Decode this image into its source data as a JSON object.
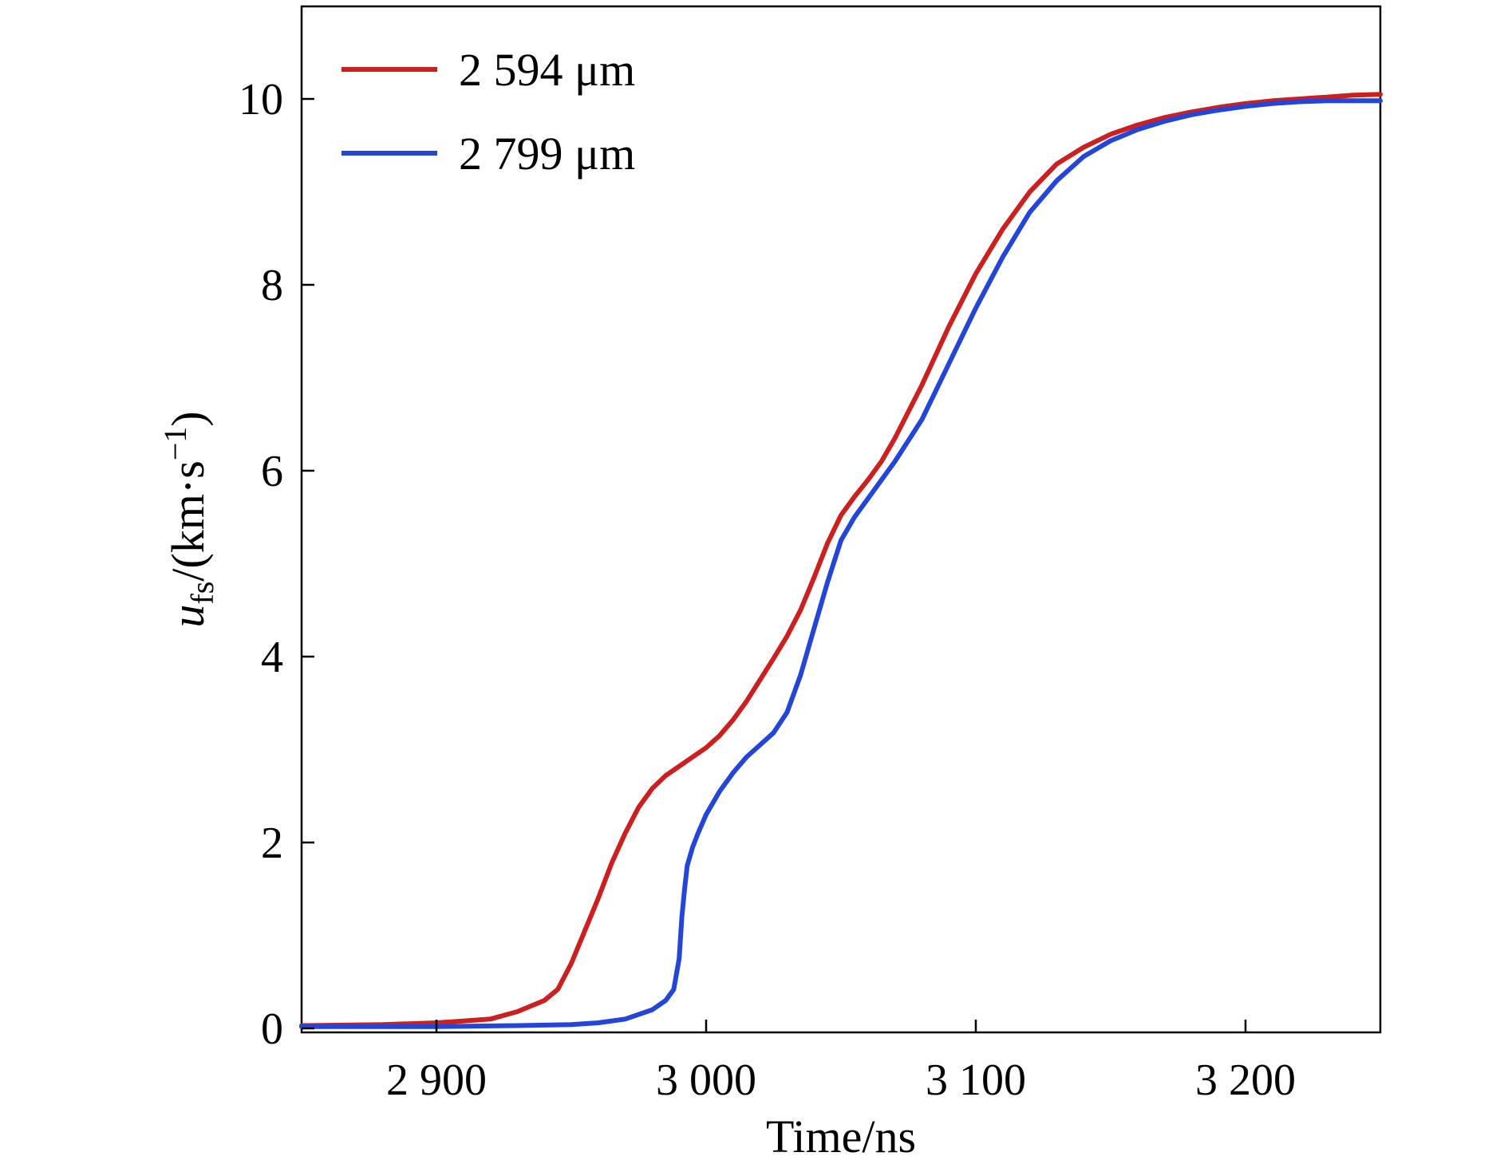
{
  "chart_data": {
    "type": "line",
    "xlabel": "Time/ns",
    "ylabel": {
      "symbol": "u",
      "subscript": "fs",
      "unit_prefix": "/(km·s",
      "superscript": "−1",
      "unit_suffix": ")"
    },
    "xlim": [
      2850,
      3250
    ],
    "ylim": [
      0,
      11
    ],
    "xticks": [
      {
        "value": 2900,
        "label": "2 900"
      },
      {
        "value": 3000,
        "label": "3 000"
      },
      {
        "value": 3100,
        "label": "3 100"
      },
      {
        "value": 3200,
        "label": "3 200"
      }
    ],
    "yticks": [
      {
        "value": 0,
        "label": "0"
      },
      {
        "value": 2,
        "label": "2"
      },
      {
        "value": 4,
        "label": "4"
      },
      {
        "value": 6,
        "label": "6"
      },
      {
        "value": 8,
        "label": "8"
      },
      {
        "value": 10,
        "label": "10"
      }
    ],
    "legend_position": "top-left",
    "grid": false,
    "series": [
      {
        "name": "2 594 μm",
        "color": "#cc1f1f",
        "x": [
          2850,
          2880,
          2900,
          2910,
          2920,
          2930,
          2940,
          2945,
          2950,
          2955,
          2960,
          2965,
          2970,
          2975,
          2980,
          2985,
          2990,
          2995,
          3000,
          3005,
          3010,
          3015,
          3020,
          3025,
          3030,
          3035,
          3040,
          3045,
          3050,
          3055,
          3060,
          3065,
          3070,
          3080,
          3090,
          3100,
          3110,
          3120,
          3130,
          3140,
          3150,
          3160,
          3170,
          3180,
          3190,
          3200,
          3210,
          3220,
          3230,
          3240,
          3250
        ],
        "y": [
          0.03,
          0.04,
          0.06,
          0.08,
          0.1,
          0.18,
          0.3,
          0.42,
          0.7,
          1.05,
          1.4,
          1.78,
          2.1,
          2.38,
          2.58,
          2.72,
          2.82,
          2.92,
          3.02,
          3.15,
          3.32,
          3.52,
          3.75,
          3.98,
          4.22,
          4.5,
          4.85,
          5.22,
          5.52,
          5.72,
          5.9,
          6.1,
          6.35,
          6.92,
          7.55,
          8.12,
          8.6,
          9.0,
          9.3,
          9.48,
          9.62,
          9.72,
          9.8,
          9.86,
          9.91,
          9.95,
          9.98,
          10.0,
          10.02,
          10.04,
          10.05
        ]
      },
      {
        "name": "2 799 μm",
        "color": "#2346d8",
        "x": [
          2850,
          2900,
          2930,
          2950,
          2960,
          2970,
          2980,
          2985,
          2988,
          2990,
          2991,
          2992,
          2993,
          2995,
          2997,
          3000,
          3005,
          3010,
          3015,
          3020,
          3025,
          3030,
          3035,
          3040,
          3045,
          3050,
          3055,
          3060,
          3065,
          3070,
          3080,
          3090,
          3100,
          3110,
          3120,
          3130,
          3140,
          3150,
          3160,
          3170,
          3180,
          3190,
          3200,
          3210,
          3220,
          3230,
          3240,
          3250
        ],
        "y": [
          0.02,
          0.02,
          0.03,
          0.04,
          0.06,
          0.1,
          0.2,
          0.3,
          0.42,
          0.75,
          1.2,
          1.5,
          1.75,
          1.95,
          2.1,
          2.3,
          2.55,
          2.75,
          2.92,
          3.05,
          3.18,
          3.4,
          3.8,
          4.3,
          4.8,
          5.25,
          5.5,
          5.7,
          5.9,
          6.1,
          6.55,
          7.15,
          7.75,
          8.3,
          8.78,
          9.12,
          9.38,
          9.55,
          9.67,
          9.76,
          9.83,
          9.88,
          9.92,
          9.95,
          9.97,
          9.98,
          9.98,
          9.98
        ]
      }
    ]
  }
}
